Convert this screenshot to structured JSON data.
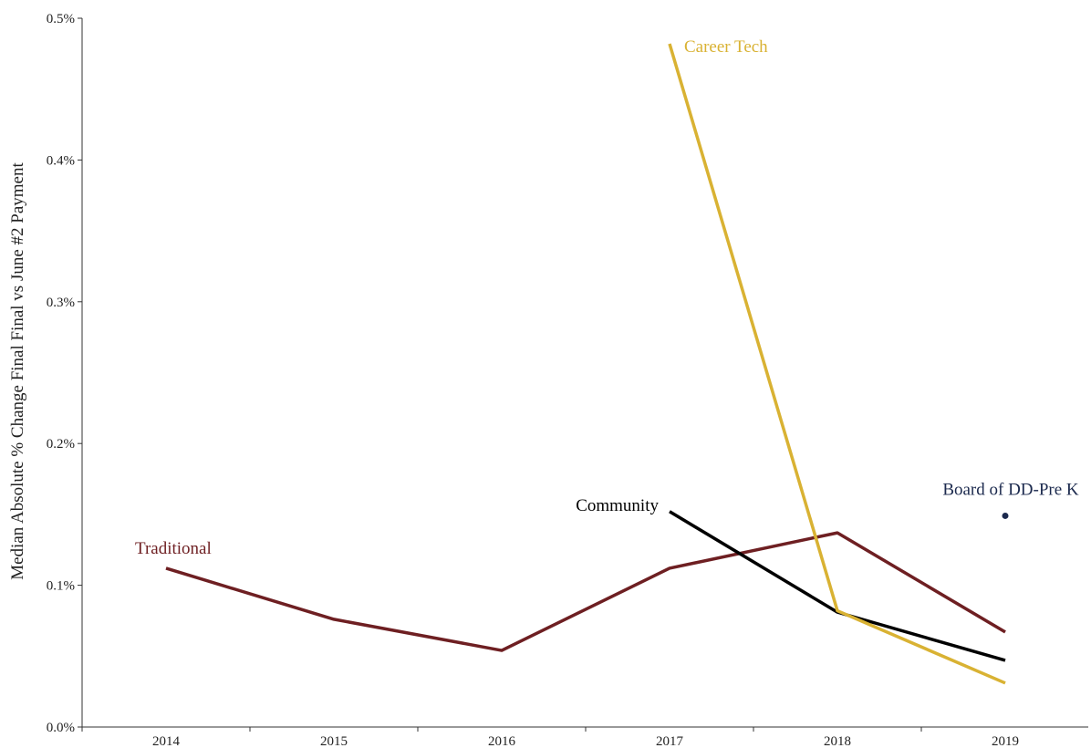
{
  "chart_data": {
    "type": "line",
    "title": "",
    "xlabel": "",
    "ylabel": "Median Absolute % Change Final Final vs June #2 Payment",
    "x": [
      2014,
      2015,
      2016,
      2017,
      2018,
      2019
    ],
    "x_tick_labels": [
      "2014",
      "2015",
      "2016",
      "2017",
      "2018",
      "2019"
    ],
    "ylim": [
      0,
      0.5
    ],
    "y_ticks": [
      0,
      0.1,
      0.2,
      0.3,
      0.4,
      0.5
    ],
    "y_tick_labels": [
      "0.0%",
      "0.1%",
      "0.2%",
      "0.3%",
      "0.4%",
      "0.5%"
    ],
    "grid": false,
    "legend": "direct labels",
    "series": [
      {
        "name": "Traditional",
        "color": "#6e1f22",
        "values": [
          0.112,
          0.076,
          0.054,
          0.112,
          0.137,
          0.067
        ]
      },
      {
        "name": "Community",
        "color": "#000000",
        "values": [
          null,
          null,
          null,
          0.152,
          0.081,
          0.047
        ]
      },
      {
        "name": "Career Tech",
        "color": "#d9b233",
        "values": [
          null,
          null,
          null,
          0.482,
          0.082,
          0.031
        ]
      },
      {
        "name": "Board of DD-Pre K",
        "color": "#1c2a4e",
        "values": [
          null,
          null,
          null,
          null,
          null,
          0.149
        ]
      }
    ]
  }
}
